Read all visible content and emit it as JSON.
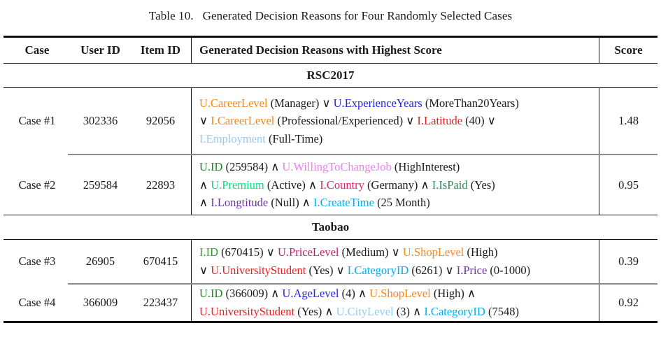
{
  "caption": "Table 10.  Generated Decision Reasons for Four Randomly Selected Cases",
  "columns": {
    "case": "Case",
    "user_id": "User ID",
    "item_id": "Item ID",
    "reasons": "Generated Decision Reasons with Highest Score",
    "score": "Score"
  },
  "palette": {
    "orange": "#FA8616",
    "blue": "#2424DF",
    "red": "#EE1C1C",
    "skyblue": "#92CCF2",
    "forestgreen": "#1E8B22",
    "green": "#2AA52A",
    "violet": "#F07EF0",
    "springgreen": "#00E27E",
    "crimson": "#D62866",
    "seagreen": "#2E8B57",
    "purple": "#6F2DA8",
    "deepskyblue": "#00AEEF",
    "magenta": "#C21E6E",
    "black": "#1A1A1A"
  },
  "sections": [
    {
      "name": "RSC2017",
      "cases": [
        {
          "case": "Case #1",
          "user_id": "302336",
          "item_id": "92056",
          "score": "1.48",
          "segments": [
            {
              "t": "U.CareerLevel",
              "c": "orange"
            },
            {
              "t": " (Manager) ∨ ",
              "c": "black"
            },
            {
              "t": "U.ExperienceYears",
              "c": "blue"
            },
            {
              "t": " (MoreThan20Years)",
              "c": "black"
            },
            {
              "br": true
            },
            {
              "t": "∨ ",
              "c": "black"
            },
            {
              "t": "I.CareerLevel",
              "c": "orange"
            },
            {
              "t": " (Professional/Experienced) ∨ ",
              "c": "black"
            },
            {
              "t": "I.Latitude",
              "c": "red"
            },
            {
              "t": " (40) ∨",
              "c": "black"
            },
            {
              "br": true
            },
            {
              "t": "I.Employment",
              "c": "skyblue"
            },
            {
              "t": " (Full-Time)",
              "c": "black"
            }
          ]
        },
        {
          "case": "Case #2",
          "user_id": "259584",
          "item_id": "22893",
          "score": "0.95",
          "segments": [
            {
              "t": "U.ID",
              "c": "forestgreen"
            },
            {
              "t": " (259584) ∧ ",
              "c": "black"
            },
            {
              "t": "U.WillingToChangeJob",
              "c": "violet"
            },
            {
              "t": " (HighInterest)",
              "c": "black"
            },
            {
              "br": true
            },
            {
              "t": "∧ ",
              "c": "black"
            },
            {
              "t": "U.Premium",
              "c": "springgreen"
            },
            {
              "t": " (Active) ∧ ",
              "c": "black"
            },
            {
              "t": "I.Country",
              "c": "crimson"
            },
            {
              "t": " (Germany) ∧ ",
              "c": "black"
            },
            {
              "t": "I.IsPaid",
              "c": "seagreen"
            },
            {
              "t": " (Yes)",
              "c": "black"
            },
            {
              "br": true
            },
            {
              "t": "∧ ",
              "c": "black"
            },
            {
              "t": "I.Longtitude",
              "c": "purple"
            },
            {
              "t": " (Null) ∧ ",
              "c": "black"
            },
            {
              "t": "I.CreateTime",
              "c": "deepskyblue"
            },
            {
              "t": " (25 Month)",
              "c": "black"
            }
          ]
        }
      ]
    },
    {
      "name": "Taobao",
      "cases": [
        {
          "case": "Case #3",
          "user_id": "26905",
          "item_id": "670415",
          "score": "0.39",
          "segments": [
            {
              "t": "I.ID",
              "c": "green"
            },
            {
              "t": " (670415) ∨ ",
              "c": "black"
            },
            {
              "t": "U.PriceLevel",
              "c": "magenta"
            },
            {
              "t": " (Medium) ∨ ",
              "c": "black"
            },
            {
              "t": "U.ShopLevel",
              "c": "orange"
            },
            {
              "t": " (High)",
              "c": "black"
            },
            {
              "br": true
            },
            {
              "t": "∨ ",
              "c": "black"
            },
            {
              "t": "U.UniversityStudent",
              "c": "red"
            },
            {
              "t": " (Yes) ∨ ",
              "c": "black"
            },
            {
              "t": "I.CategoryID",
              "c": "deepskyblue"
            },
            {
              "t": " (6261) ∨ ",
              "c": "black"
            },
            {
              "t": "I.Price",
              "c": "purple"
            },
            {
              "t": " (0-1000)",
              "c": "black"
            }
          ]
        },
        {
          "case": "Case #4",
          "user_id": "366009",
          "item_id": "223437",
          "score": "0.92",
          "segments": [
            {
              "t": "U.ID",
              "c": "forestgreen"
            },
            {
              "t": " (366009) ∧ ",
              "c": "black"
            },
            {
              "t": "U.AgeLevel",
              "c": "blue"
            },
            {
              "t": " (4) ∧ ",
              "c": "black"
            },
            {
              "t": "U.ShopLevel",
              "c": "orange"
            },
            {
              "t": " (High) ∧",
              "c": "black"
            },
            {
              "br": true
            },
            {
              "t": "U.UniversityStudent",
              "c": "red"
            },
            {
              "t": " (Yes) ∧ ",
              "c": "black"
            },
            {
              "t": "U.CityLevel",
              "c": "skyblue"
            },
            {
              "t": " (3) ∧ ",
              "c": "black"
            },
            {
              "t": "I.CategoryID",
              "c": "deepskyblue"
            },
            {
              "t": " (7548)",
              "c": "black"
            }
          ]
        }
      ]
    }
  ]
}
